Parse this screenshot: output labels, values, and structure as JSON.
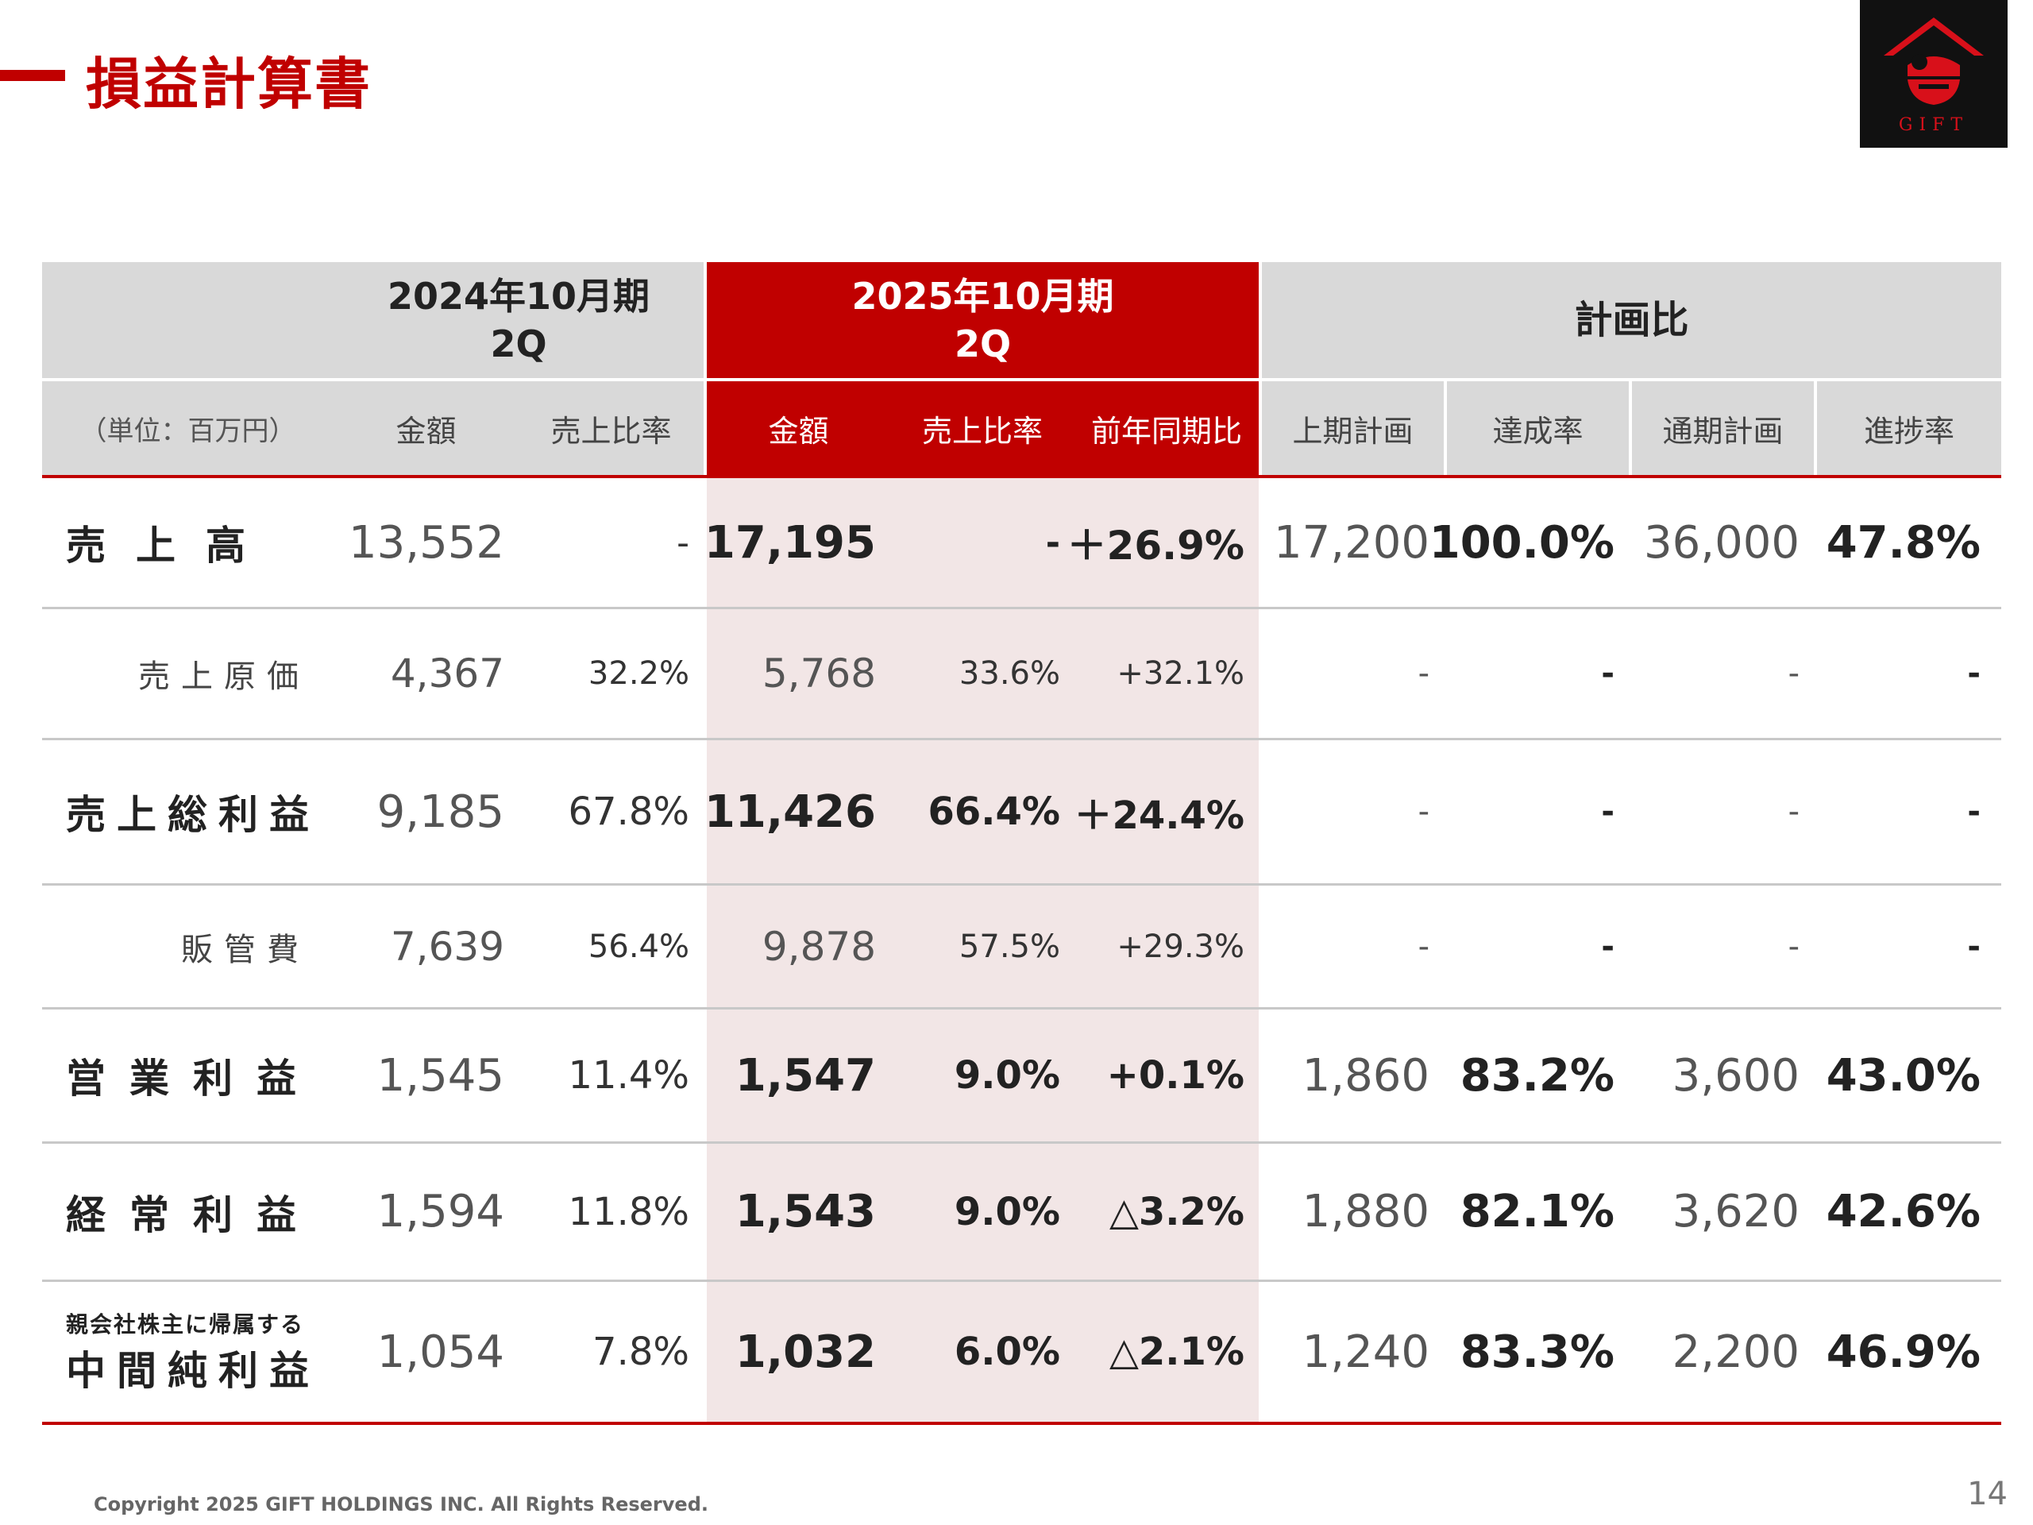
{
  "page": {
    "title": "損益計算書",
    "page_number": "14",
    "copyright": "Copyright 2025 GIFT HOLDINGS INC. All Rights Reserved."
  },
  "logo": {
    "text": "GIFT",
    "icon": "gift-logo-icon"
  },
  "colors": {
    "accent": "#c00000",
    "header_grey": "#d9d9d9",
    "highlight_pink": "#f2e6e6"
  },
  "table": {
    "group_headers": {
      "prev": [
        "2024年10月期",
        "2Q"
      ],
      "curr": [
        "2025年10月期",
        "2Q"
      ],
      "plan": "計画比"
    },
    "col_headers": {
      "unit": "（単位：百万円）",
      "prev_amount": "金額",
      "prev_ratio": "売上比率",
      "curr_amount": "金額",
      "curr_ratio": "売上比率",
      "curr_yoy": "前年同期比",
      "h1_plan": "上期計画",
      "h1_rate": "達成率",
      "fy_plan": "通期計画",
      "fy_progress": "進捗率"
    },
    "rows": [
      {
        "label": "売上高",
        "prev_amount": "13,552",
        "prev_ratio": "-",
        "curr_amount": "17,195",
        "curr_ratio": "-",
        "curr_yoy": "＋26.9%",
        "h1_plan": "17,200",
        "h1_rate": "100.0%",
        "fy_plan": "36,000",
        "fy_progress": "47.8%"
      },
      {
        "label": "売上原価",
        "prev_amount": "4,367",
        "prev_ratio": "32.2%",
        "curr_amount": "5,768",
        "curr_ratio": "33.6%",
        "curr_yoy": "+32.1%",
        "h1_plan": "-",
        "h1_rate": "-",
        "fy_plan": "-",
        "fy_progress": "-"
      },
      {
        "label": "売上総利益",
        "prev_amount": "9,185",
        "prev_ratio": "67.8%",
        "curr_amount": "11,426",
        "curr_ratio": "66.4%",
        "curr_yoy": "＋24.4%",
        "h1_plan": "-",
        "h1_rate": "-",
        "fy_plan": "-",
        "fy_progress": "-"
      },
      {
        "label": "販管費",
        "prev_amount": "7,639",
        "prev_ratio": "56.4%",
        "curr_amount": "9,878",
        "curr_ratio": "57.5%",
        "curr_yoy": "+29.3%",
        "h1_plan": "-",
        "h1_rate": "-",
        "fy_plan": "-",
        "fy_progress": "-"
      },
      {
        "label": "営業利益",
        "prev_amount": "1,545",
        "prev_ratio": "11.4%",
        "curr_amount": "1,547",
        "curr_ratio": "9.0%",
        "curr_yoy": "+0.1%",
        "h1_plan": "1,860",
        "h1_rate": "83.2%",
        "fy_plan": "3,600",
        "fy_progress": "43.0%"
      },
      {
        "label": "経常利益",
        "prev_amount": "1,594",
        "prev_ratio": "11.8%",
        "curr_amount": "1,543",
        "curr_ratio": "9.0%",
        "curr_yoy": "△3.2%",
        "h1_plan": "1,880",
        "h1_rate": "82.1%",
        "fy_plan": "3,620",
        "fy_progress": "42.6%"
      },
      {
        "label_small": "親会社株主に帰属する",
        "label": "中間純利益",
        "prev_amount": "1,054",
        "prev_ratio": "7.8%",
        "curr_amount": "1,032",
        "curr_ratio": "6.0%",
        "curr_yoy": "△2.1%",
        "h1_plan": "1,240",
        "h1_rate": "83.3%",
        "fy_plan": "2,200",
        "fy_progress": "46.9%"
      }
    ]
  }
}
